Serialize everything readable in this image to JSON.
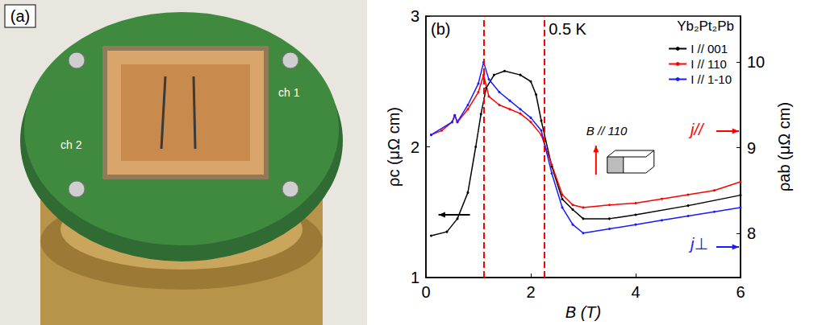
{
  "panel_a": {
    "label": "(a)",
    "board_labels": [
      "ch 1",
      "ch 2"
    ]
  },
  "chart_data": {
    "type": "line",
    "panel_label": "(b)",
    "title": "Yb₂Pt₂Pb",
    "annotations": [
      "0.5 K",
      "B // 110",
      "j//",
      "j⊥"
    ],
    "x_label": "B (T)",
    "y_label": "ρc (μΩ cm)",
    "y2_label": "ρab (μΩ cm)",
    "xlim": [
      0,
      6
    ],
    "xticks": [
      0,
      2,
      4,
      6
    ],
    "ylim": [
      1,
      3
    ],
    "yticks": [
      1,
      2,
      3
    ],
    "y2lim": [
      7.48,
      10.54
    ],
    "y2ticks": [
      8,
      9,
      10
    ],
    "vlines": [
      1.1,
      2.25
    ],
    "legend": "upper right",
    "grid": false,
    "marker": "circle",
    "series": [
      {
        "name": "I // 001",
        "color": "#000000",
        "axis": "y",
        "x": [
          0.1,
          0.4,
          0.6,
          0.8,
          0.95,
          1.05,
          1.15,
          1.3,
          1.5,
          1.8,
          2.0,
          2.1,
          2.2,
          2.4,
          2.6,
          2.8,
          3.0,
          3.5,
          4.0,
          5.0,
          6.0
        ],
        "values": [
          1.32,
          1.35,
          1.45,
          1.65,
          2.0,
          2.25,
          2.45,
          2.55,
          2.58,
          2.55,
          2.5,
          2.4,
          2.2,
          1.85,
          1.6,
          1.52,
          1.45,
          1.45,
          1.48,
          1.55,
          1.63
        ]
      },
      {
        "name": "I // 110",
        "color": "#ff0000",
        "axis": "y2",
        "x": [
          0.1,
          0.3,
          0.5,
          0.55,
          0.6,
          0.8,
          1.0,
          1.1,
          1.2,
          1.4,
          1.6,
          1.8,
          2.0,
          2.2,
          2.4,
          2.6,
          2.8,
          3.0,
          3.5,
          4.0,
          4.5,
          5.0,
          5.5,
          6.0
        ],
        "values": [
          9.15,
          9.2,
          9.3,
          9.38,
          9.3,
          9.45,
          9.65,
          9.85,
          9.6,
          9.5,
          9.45,
          9.4,
          9.3,
          9.15,
          8.8,
          8.45,
          8.33,
          8.3,
          8.33,
          8.35,
          8.4,
          8.45,
          8.5,
          8.6
        ]
      },
      {
        "name": "I // 1-10",
        "color": "#1a1aff",
        "axis": "y2",
        "x": [
          0.1,
          0.5,
          0.55,
          0.6,
          0.8,
          1.0,
          1.1,
          1.2,
          1.4,
          1.6,
          1.8,
          2.0,
          2.2,
          2.4,
          2.6,
          2.8,
          3.0,
          3.5,
          4.0,
          4.5,
          5.0,
          5.5,
          6.0
        ],
        "values": [
          9.15,
          9.3,
          9.38,
          9.3,
          9.5,
          9.75,
          10.0,
          9.8,
          9.65,
          9.55,
          9.45,
          9.35,
          9.2,
          8.7,
          8.3,
          8.1,
          8.0,
          8.05,
          8.1,
          8.15,
          8.2,
          8.25,
          8.3
        ]
      }
    ]
  }
}
